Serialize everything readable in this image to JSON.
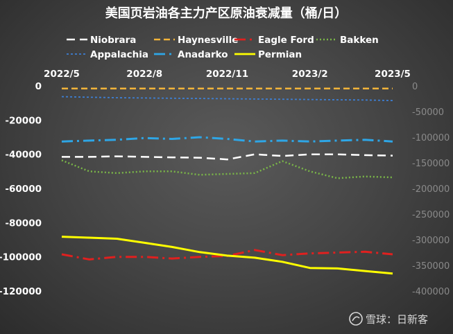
{
  "chart_data": {
    "type": "line",
    "title": "美国页岩油各主力产区原油衰减量（桶/日）",
    "x": [
      "2022/5",
      "2022/6",
      "2022/7",
      "2022/8",
      "2022/9",
      "2022/10",
      "2022/11",
      "2022/12",
      "2023/1",
      "2023/2",
      "2023/3",
      "2023/4",
      "2023/5"
    ],
    "x_tick_labels": [
      "2022/5",
      "2022/8",
      "2022/11",
      "2023/2",
      "2023/5"
    ],
    "y_left": {
      "ticks": [
        0,
        -20000,
        -40000,
        -60000,
        -80000,
        -100000,
        -120000
      ],
      "range": [
        -120000,
        0
      ]
    },
    "y_right": {
      "ticks": [
        0,
        -50000,
        -100000,
        -150000,
        -200000,
        -250000,
        -300000,
        -350000,
        -400000
      ],
      "range": [
        -400000,
        0
      ]
    },
    "legend_position": "top",
    "series": [
      {
        "name": "Niobrara",
        "axis": "left",
        "color": "#ffffff",
        "dash": "12,7",
        "width": 2.5,
        "values": [
          -41500,
          -41500,
          -41200,
          -41500,
          -41800,
          -42000,
          -43000,
          -40000,
          -41000,
          -40000,
          -40000,
          -40500,
          -40800
        ]
      },
      {
        "name": "Haynesville",
        "axis": "left",
        "color": "#f2b43a",
        "dash": "9,5",
        "width": 2.5,
        "values": [
          -1500,
          -1500,
          -1500,
          -1500,
          -1500,
          -1500,
          -1500,
          -1500,
          -1500,
          -1500,
          -1500,
          -1500,
          -1500
        ]
      },
      {
        "name": "Eagle Ford",
        "axis": "left",
        "color": "#e0201f",
        "dash": "16,6,3,6",
        "width": 3,
        "values": [
          -98500,
          -101500,
          -100000,
          -100000,
          -101000,
          -100000,
          -99500,
          -96000,
          -99000,
          -98000,
          -97500,
          -97000,
          -98500
        ]
      },
      {
        "name": "Bakken",
        "axis": "left",
        "color": "#7ab648",
        "dash": "2,3",
        "width": 2.5,
        "values": [
          -43500,
          -50000,
          -51000,
          -50000,
          -50000,
          -52000,
          -51500,
          -51000,
          -44000,
          -50000,
          -54000,
          -53000,
          -53500
        ]
      },
      {
        "name": "Appalachia",
        "axis": "right",
        "color": "#3d7fd4",
        "dash": "3,3",
        "width": 1.8,
        "values": [
          -21000,
          -22000,
          -23000,
          -23500,
          -24000,
          -24500,
          -25000,
          -25500,
          -26000,
          -26500,
          -27000,
          -27500,
          -28500
        ]
      },
      {
        "name": "Anadarko",
        "axis": "left",
        "color": "#2ea6e6",
        "dash": "16,6,3,6",
        "width": 3,
        "values": [
          -32500,
          -32000,
          -31500,
          -30500,
          -31000,
          -30000,
          -31000,
          -32500,
          -32000,
          -32500,
          -32000,
          -31500,
          -32500
        ]
      },
      {
        "name": "Permian",
        "axis": "right",
        "color": "#ffff00",
        "dash": "",
        "width": 3,
        "values": [
          -294000,
          -296000,
          -298000,
          -306000,
          -314000,
          -324000,
          -331000,
          -335000,
          -343000,
          -355000,
          -356000,
          -361000,
          -366000
        ]
      }
    ]
  },
  "watermark": {
    "text": "雪球：日新客"
  }
}
